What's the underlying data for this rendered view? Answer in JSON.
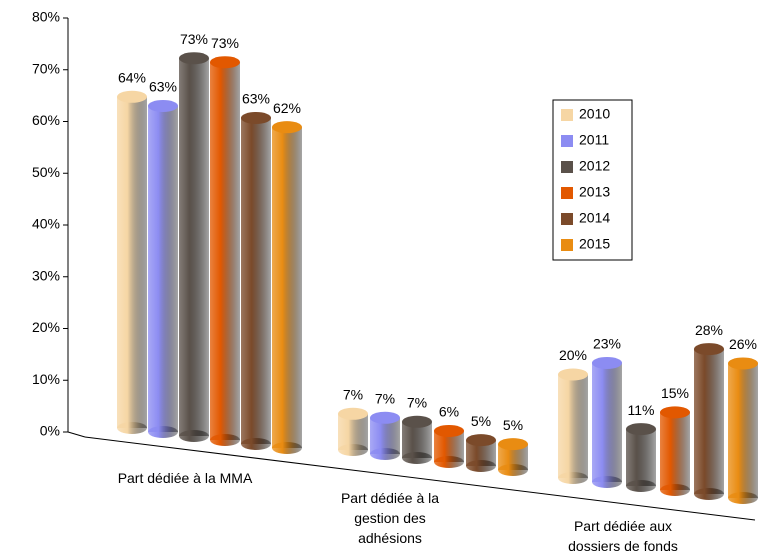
{
  "chart_data": {
    "type": "bar3d",
    "categories": [
      "Part dédiée à la MMA",
      "Part dédiée à la gestion des adhésions",
      "Part dédiée aux dossiers de fonds"
    ],
    "series": [
      {
        "name": "2010",
        "color": "#f6d6a4",
        "values": [
          64,
          7,
          20
        ],
        "value_labels": [
          "64%",
          "7%",
          "20%"
        ]
      },
      {
        "name": "2011",
        "color": "#8c8cf2",
        "values": [
          63,
          7,
          23
        ],
        "value_labels": [
          "63%",
          "7%",
          "23%"
        ]
      },
      {
        "name": "2012",
        "color": "#5a514a",
        "values": [
          73,
          7,
          11
        ],
        "value_labels": [
          "73%",
          "7%",
          "11%"
        ]
      },
      {
        "name": "2013",
        "color": "#e25800",
        "values": [
          73,
          6,
          15
        ],
        "value_labels": [
          "73%",
          "6%",
          "15%"
        ]
      },
      {
        "name": "2014",
        "color": "#7b4a2a",
        "values": [
          63,
          5,
          28
        ],
        "value_labels": [
          "63%",
          "5%",
          "28%"
        ]
      },
      {
        "name": "2015",
        "color": "#e98c12",
        "values": [
          62,
          5,
          26
        ],
        "value_labels": [
          "62%",
          "5%",
          "26%"
        ]
      }
    ],
    "ylim": [
      0,
      80
    ],
    "yticks": [
      {
        "value": 0,
        "label": "0%"
      },
      {
        "value": 10,
        "label": "10%"
      },
      {
        "value": 20,
        "label": "20%"
      },
      {
        "value": 30,
        "label": "30%"
      },
      {
        "value": 40,
        "label": "40%"
      },
      {
        "value": 50,
        "label": "50%"
      },
      {
        "value": 60,
        "label": "60%"
      },
      {
        "value": 70,
        "label": "70%"
      },
      {
        "value": 80,
        "label": "80%"
      }
    ],
    "legend": "right"
  }
}
